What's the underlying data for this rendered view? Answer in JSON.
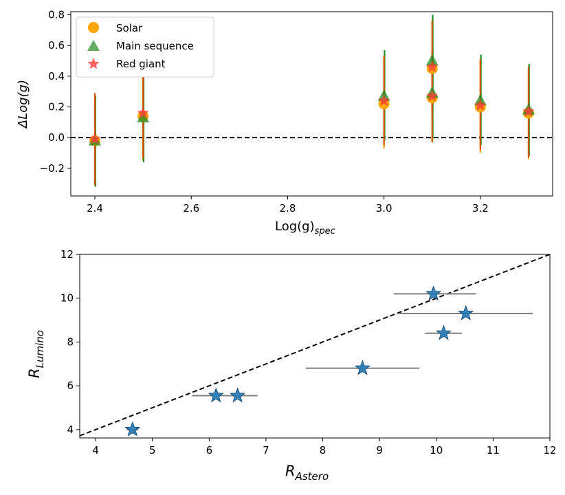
{
  "colors": {
    "solar": "#FFA500",
    "main_sequence": "#228B22",
    "red_giant": "#FF3B3B",
    "errbar_top": "#D35400",
    "stars": "#1F77B4",
    "xerr": "#808080",
    "reference": "#000000"
  },
  "chart_data": [
    {
      "type": "scatter",
      "title": "",
      "xlabel": "Log(g)",
      "xlabel_sub": "spec",
      "ylabel": "ΔLog(g)",
      "xlim": [
        2.35,
        3.35
      ],
      "ylim": [
        -0.38,
        0.82
      ],
      "xticks": [
        2.4,
        2.6,
        2.8,
        3.0,
        3.2
      ],
      "xtick_labels": [
        "2.4",
        "2.6",
        "2.8",
        "3.0",
        "3.2"
      ],
      "yticks": [
        -0.2,
        0.0,
        0.2,
        0.4,
        0.6,
        0.8
      ],
      "ytick_labels": [
        "−0.2",
        "0.0",
        "0.2",
        "0.4",
        "0.6",
        "0.8"
      ],
      "reference_line": {
        "y": 0.0,
        "style": "dashed"
      },
      "legend": {
        "placement": "top-left",
        "entries": [
          "Solar",
          "Main sequence",
          "Red giant"
        ]
      },
      "series": [
        {
          "name": "Solar",
          "marker": "circle",
          "points": [
            {
              "x": 2.4,
              "y": -0.02,
              "ylo": -0.31,
              "yhi": 0.27
            },
            {
              "x": 2.5,
              "y": 0.14,
              "ylo": -0.15,
              "yhi": 0.43
            },
            {
              "x": 3.0,
              "y": 0.22,
              "ylo": -0.07,
              "yhi": 0.52
            },
            {
              "x": 3.1,
              "y": 0.45,
              "ylo": 0.15,
              "yhi": 0.76
            },
            {
              "x": 3.1,
              "y": 0.26,
              "ylo": -0.03,
              "yhi": 0.56
            },
            {
              "x": 3.2,
              "y": 0.2,
              "ylo": -0.1,
              "yhi": 0.5
            },
            {
              "x": 3.3,
              "y": 0.16,
              "ylo": -0.14,
              "yhi": 0.46
            }
          ]
        },
        {
          "name": "Main sequence",
          "marker": "triangle",
          "points": [
            {
              "x": 2.4,
              "y": -0.02,
              "ylo": -0.32,
              "yhi": 0.27
            },
            {
              "x": 2.5,
              "y": 0.13,
              "ylo": -0.16,
              "yhi": 0.43
            },
            {
              "x": 3.0,
              "y": 0.27,
              "ylo": -0.02,
              "yhi": 0.57
            },
            {
              "x": 3.1,
              "y": 0.5,
              "ylo": 0.21,
              "yhi": 0.8
            },
            {
              "x": 3.1,
              "y": 0.29,
              "ylo": -0.01,
              "yhi": 0.59
            },
            {
              "x": 3.2,
              "y": 0.24,
              "ylo": -0.05,
              "yhi": 0.54
            },
            {
              "x": 3.3,
              "y": 0.18,
              "ylo": -0.12,
              "yhi": 0.48
            }
          ]
        },
        {
          "name": "Red giant",
          "marker": "star",
          "points": [
            {
              "x": 2.4,
              "y": -0.01,
              "ylo": -0.31,
              "yhi": 0.29
            },
            {
              "x": 2.5,
              "y": 0.16,
              "ylo": -0.13,
              "yhi": 0.46
            },
            {
              "x": 3.0,
              "y": 0.24,
              "ylo": -0.05,
              "yhi": 0.53
            },
            {
              "x": 3.1,
              "y": 0.46,
              "ylo": 0.17,
              "yhi": 0.76
            },
            {
              "x": 3.1,
              "y": 0.27,
              "ylo": -0.03,
              "yhi": 0.56
            },
            {
              "x": 3.2,
              "y": 0.21,
              "ylo": -0.08,
              "yhi": 0.51
            },
            {
              "x": 3.3,
              "y": 0.17,
              "ylo": -0.13,
              "yhi": 0.46
            }
          ]
        }
      ]
    },
    {
      "type": "scatter",
      "title": "",
      "xlabel": "R",
      "xlabel_sub": "Astero",
      "ylabel": "R",
      "ylabel_sub": "Lumino",
      "xlim": [
        3.72,
        12.0
      ],
      "ylim": [
        3.62,
        12.0
      ],
      "xticks": [
        4,
        5,
        6,
        7,
        8,
        9,
        10,
        11,
        12
      ],
      "xtick_labels": [
        "4",
        "5",
        "6",
        "7",
        "8",
        "9",
        "10",
        "11",
        "12"
      ],
      "yticks": [
        4,
        6,
        8,
        10,
        12
      ],
      "ytick_labels": [
        "4",
        "6",
        "8",
        "10",
        "12"
      ],
      "reference_line": {
        "type": "one_to_one",
        "style": "dashed"
      },
      "series": [
        {
          "name": "stars",
          "marker": "star",
          "points": [
            {
              "x": 4.65,
              "y": 4.0,
              "xlo": 4.55,
              "xhi": 4.75
            },
            {
              "x": 6.12,
              "y": 5.55,
              "xlo": 5.7,
              "xhi": 6.85
            },
            {
              "x": 6.5,
              "y": 5.55,
              "xlo": 5.7,
              "xhi": 6.85
            },
            {
              "x": 8.7,
              "y": 6.8,
              "xlo": 7.7,
              "xhi": 9.7
            },
            {
              "x": 9.95,
              "y": 10.2,
              "xlo": 9.25,
              "xhi": 10.7
            },
            {
              "x": 10.52,
              "y": 9.3,
              "xlo": 9.35,
              "xhi": 11.7
            },
            {
              "x": 10.13,
              "y": 8.4,
              "xlo": 9.8,
              "xhi": 10.45
            }
          ]
        }
      ]
    }
  ]
}
